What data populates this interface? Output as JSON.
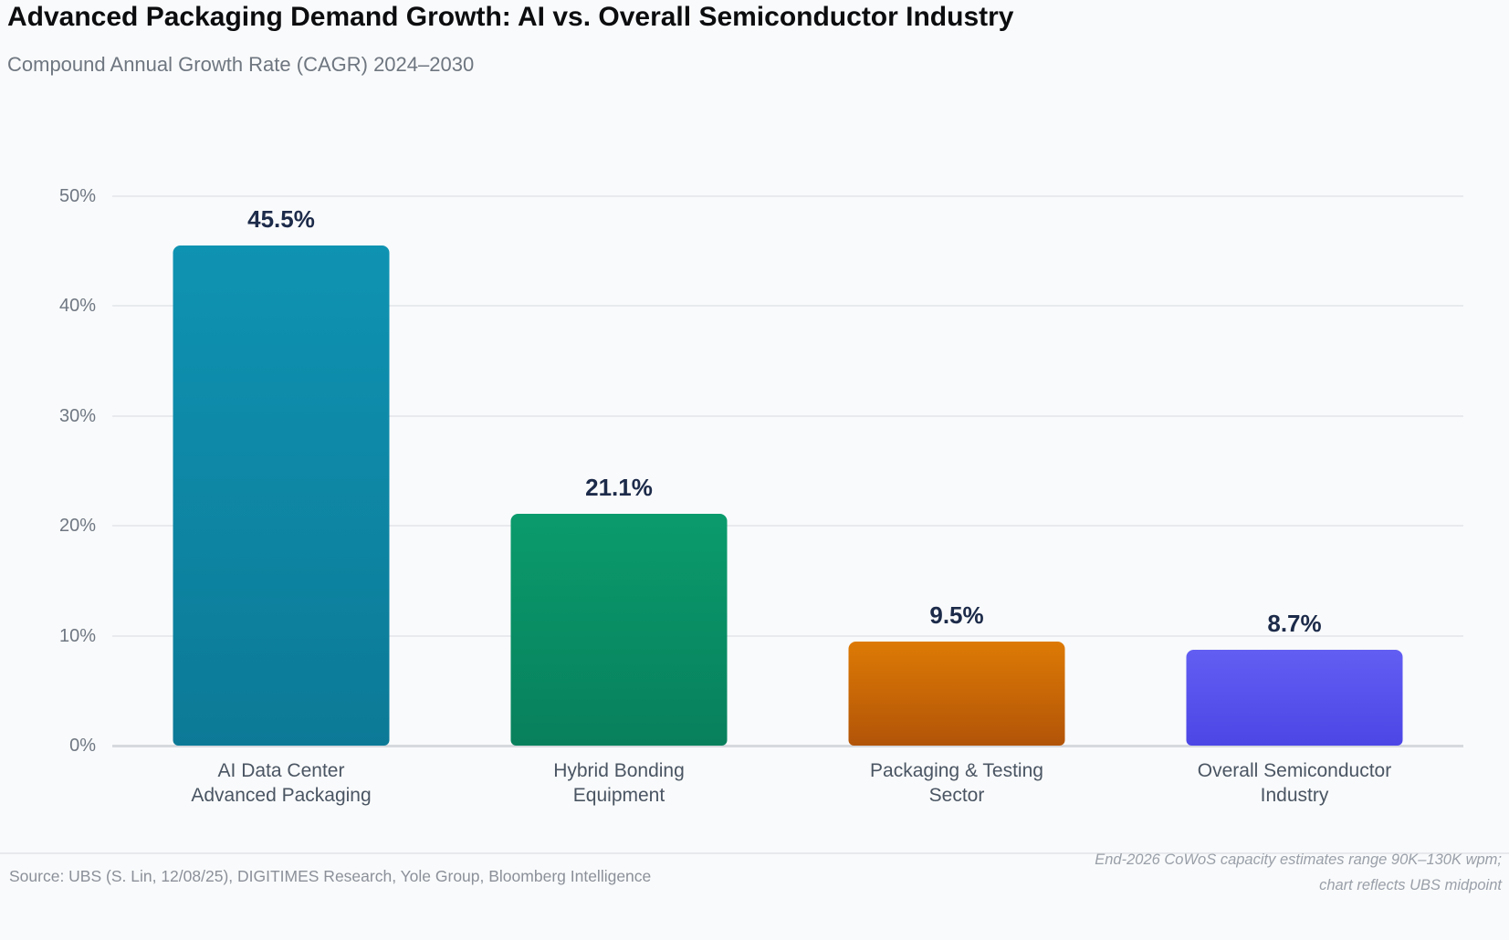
{
  "header": {
    "title": "Advanced Packaging Demand Growth: AI vs. Overall Semiconductor Industry",
    "subtitle": "Compound Annual Growth Rate (CAGR) 2024–2030"
  },
  "chart_data": {
    "type": "bar",
    "title": "Advanced Packaging Demand Growth: AI vs. Overall Semiconductor Industry",
    "subtitle": "Compound Annual Growth Rate (CAGR) 2024–2030",
    "categories": [
      [
        "AI Data Center",
        "Advanced Packaging"
      ],
      [
        "Hybrid Bonding",
        "Equipment"
      ],
      [
        "Packaging & Testing",
        "Sector"
      ],
      [
        "Overall Semiconductor",
        "Industry"
      ]
    ],
    "values": [
      45.5,
      21.1,
      9.5,
      8.7
    ],
    "value_labels": [
      "45.5%",
      "21.1%",
      "9.5%",
      "8.7%"
    ],
    "bar_gradients": [
      {
        "top": "#0f93b2",
        "bottom": "#0c7a97"
      },
      {
        "top": "#0a9b6c",
        "bottom": "#08805c"
      },
      {
        "top": "#dd7a05",
        "bottom": "#b25408"
      },
      {
        "top": "#625ef2",
        "bottom": "#4c46e6"
      }
    ],
    "xlabel": "",
    "ylabel": "",
    "ylim": [
      0,
      50
    ],
    "yticks": [
      "50%",
      "40%",
      "30%",
      "20%",
      "10%",
      "0%"
    ],
    "grid": true,
    "legend_position": "none",
    "value_label_color": "#1d2b4a"
  },
  "footer": {
    "source": "Source: UBS (S. Lin, 12/08/25), DIGITIMES Research, Yole Group, Bloomberg Intelligence",
    "note_line1": "End-2026 CoWoS capacity estimates range 90K–130K wpm;",
    "note_line2": "chart reflects UBS midpoint"
  },
  "colors": {
    "background": "#f9fafb",
    "gridline": "#e8eaed",
    "baseline": "#d6d9de",
    "axis_text": "#6f7782",
    "category_text": "#4a5563"
  }
}
